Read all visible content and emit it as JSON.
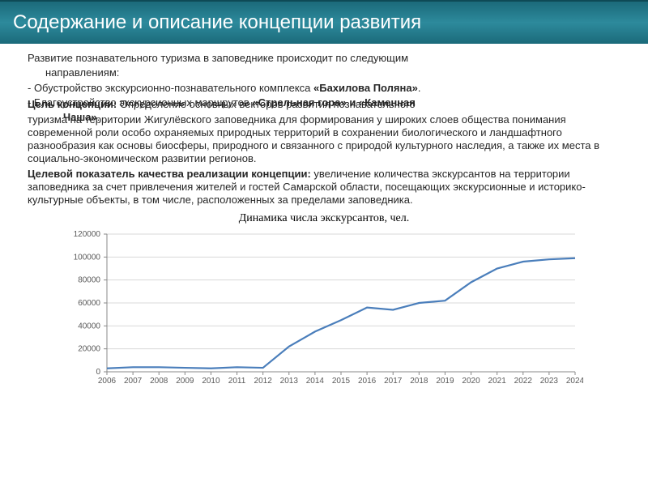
{
  "title": "Содержание и описание концепции развития",
  "para_intro": "Развитие познавательного туризма в заповеднике происходит по следующим",
  "para_intro2": "направлениям:",
  "bullet1_a": "- Обустройство экскурсионно-познавательного комплекса ",
  "bullet1_b": "«Бахилова Поляна»",
  "bullet1_c": ".",
  "bullet2_a": "- Благоустройство экскурсионных  маршрутов ",
  "bullet2_b": "«Стрельная гора» и «Каменная",
  "goal_label": "Цель концепции:",
  "goal_over": "   Определение основных векторов развития познавательного",
  "bullet2_b2": "Чаша»",
  "bullet2_c": ".",
  "goal_rest": "туризма на территории Жигулёвского заповедника для формирования у широких слоев общества понимания современной роли особо охраняемых природных территорий в сохранении биологического и ландшафтного разнообразия как основы биосферы, природного и связанного с природой культурного наследия, а также их места в социально-экономическом развитии регионов.",
  "kpi_label": "Целевой показатель качества реализации концепции:",
  "kpi_rest": " увеличение количества экскурсантов на территории заповедника за счет привлечения жителей и гостей Самарской области, посещающих экскурсионные и историко-культурные объекты, в том числе, расположенных за пределами заповедника.",
  "chart": {
    "type": "line",
    "title": "Динамика числа экскурсантов, чел.",
    "ylim": [
      0,
      120000
    ],
    "ytick_step": 20000,
    "years": [
      2006,
      2007,
      2008,
      2009,
      2010,
      2011,
      2012,
      2013,
      2014,
      2015,
      2016,
      2017,
      2018,
      2019,
      2020,
      2021,
      2022,
      2023,
      2024
    ],
    "values": [
      3000,
      4000,
      4000,
      3500,
      3000,
      4000,
      3500,
      22000,
      35000,
      45000,
      56000,
      54000,
      60000,
      62000,
      78000,
      90000,
      96000,
      98000,
      99000
    ],
    "line_color": "#4a7ebb",
    "grid_color": "#d8d8d8",
    "axis_color": "#888888",
    "background": "#ffffff",
    "tick_label_color": "#595959",
    "tick_fontsize": 10
  }
}
